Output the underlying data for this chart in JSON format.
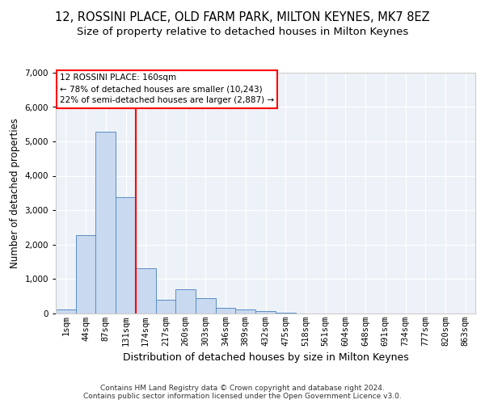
{
  "title_line1": "12, ROSSINI PLACE, OLD FARM PARK, MILTON KEYNES, MK7 8EZ",
  "title_line2": "Size of property relative to detached houses in Milton Keynes",
  "xlabel": "Distribution of detached houses by size in Milton Keynes",
  "ylabel": "Number of detached properties",
  "footer_line1": "Contains HM Land Registry data © Crown copyright and database right 2024.",
  "footer_line2": "Contains public sector information licensed under the Open Government Licence v3.0.",
  "categories": [
    "1sqm",
    "44sqm",
    "87sqm",
    "131sqm",
    "174sqm",
    "217sqm",
    "260sqm",
    "303sqm",
    "346sqm",
    "389sqm",
    "432sqm",
    "475sqm",
    "518sqm",
    "561sqm",
    "604sqm",
    "648sqm",
    "691sqm",
    "734sqm",
    "777sqm",
    "820sqm",
    "863sqm"
  ],
  "bar_values": [
    100,
    2280,
    5280,
    3380,
    1310,
    390,
    700,
    430,
    155,
    95,
    60,
    5,
    0,
    0,
    0,
    0,
    0,
    0,
    0,
    0,
    0
  ],
  "bar_color": "#c9d9ef",
  "bar_edge_color": "#5b8ec4",
  "vline_x": 3.5,
  "vline_color": "red",
  "annotation_text": "12 ROSSINI PLACE: 160sqm\n← 78% of detached houses are smaller (10,243)\n22% of semi-detached houses are larger (2,887) →",
  "annotation_box_facecolor": "white",
  "annotation_box_edgecolor": "red",
  "ylim": [
    0,
    7000
  ],
  "yticks": [
    0,
    1000,
    2000,
    3000,
    4000,
    5000,
    6000,
    7000
  ],
  "bg_color": "#edf1f8",
  "title_fontsize": 10.5,
  "subtitle_fontsize": 9.5,
  "axis_label_fontsize": 8.5,
  "tick_fontsize": 7.5,
  "annotation_fontsize": 7.5,
  "footer_fontsize": 6.5
}
